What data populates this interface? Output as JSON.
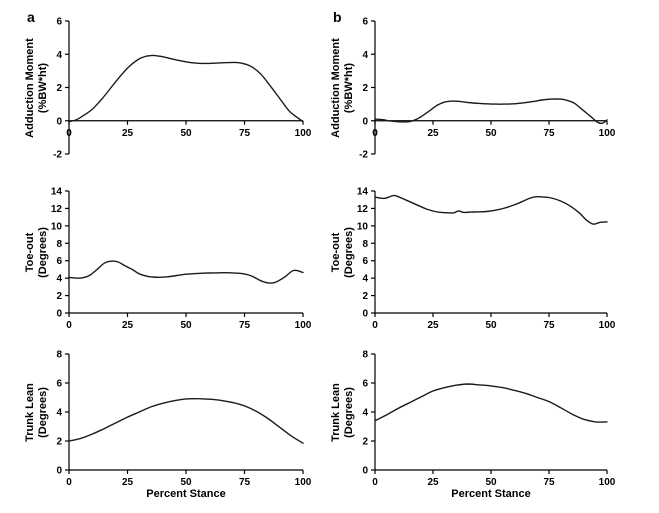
{
  "figure": {
    "background": "#ffffff",
    "line_color": "#1a1a1a",
    "axis_color": "#000000",
    "panel_labels": {
      "a": "a",
      "b": "b"
    },
    "x_axis_title": "Percent Stance"
  },
  "chart_data": [
    {
      "id": "a-adduction-moment",
      "type": "line",
      "panel_label": "a",
      "ylabel_line1": "Adduction Moment",
      "ylabel_line2": "(%BW*ht)",
      "xlabel": "",
      "xlim": [
        0,
        100
      ],
      "ylim": [
        -2,
        6
      ],
      "xticks": [
        0,
        25,
        50,
        75,
        100
      ],
      "yticks": [
        -2,
        0,
        2,
        4,
        6
      ],
      "x": [
        0,
        3,
        6,
        10,
        14,
        18,
        22,
        26,
        30,
        33,
        36,
        40,
        44,
        48,
        52,
        56,
        60,
        64,
        68,
        72,
        75,
        78,
        82,
        86,
        90,
        94,
        97,
        100
      ],
      "y": [
        -0.05,
        0.05,
        0.3,
        0.7,
        1.3,
        2.0,
        2.7,
        3.3,
        3.72,
        3.88,
        3.93,
        3.85,
        3.72,
        3.6,
        3.5,
        3.45,
        3.45,
        3.48,
        3.5,
        3.5,
        3.42,
        3.25,
        2.8,
        2.1,
        1.35,
        0.6,
        0.25,
        -0.05
      ]
    },
    {
      "id": "b-adduction-moment",
      "type": "line",
      "panel_label": "b",
      "ylabel_line1": "Adduction Moment",
      "ylabel_line2": "(%BW*ht)",
      "xlabel": "",
      "xlim": [
        0,
        100
      ],
      "ylim": [
        -2,
        6
      ],
      "xticks": [
        0,
        25,
        50,
        75,
        100
      ],
      "yticks": [
        -2,
        0,
        2,
        4,
        6
      ],
      "x": [
        0,
        3,
        6,
        9,
        12,
        15,
        18,
        21,
        24,
        27,
        30,
        33,
        36,
        40,
        44,
        48,
        52,
        56,
        60,
        64,
        68,
        72,
        76,
        80,
        83,
        86,
        90,
        93,
        96,
        98,
        100
      ],
      "y": [
        0.1,
        0.07,
        0.0,
        -0.05,
        -0.07,
        -0.05,
        0.1,
        0.35,
        0.65,
        0.95,
        1.12,
        1.18,
        1.17,
        1.1,
        1.05,
        1.02,
        1.0,
        1.0,
        1.02,
        1.08,
        1.15,
        1.25,
        1.3,
        1.3,
        1.22,
        1.05,
        0.6,
        0.25,
        -0.1,
        -0.15,
        0.05
      ]
    },
    {
      "id": "a-toe-out",
      "type": "line",
      "panel_label": "",
      "ylabel_line1": "Toe-out",
      "ylabel_line2": "(Degrees)",
      "xlabel": "",
      "xlim": [
        0,
        100
      ],
      "ylim": [
        0,
        14
      ],
      "xticks": [
        0,
        25,
        50,
        75,
        100
      ],
      "yticks": [
        0,
        2,
        4,
        6,
        8,
        10,
        12,
        14
      ],
      "x": [
        0,
        3,
        6,
        9,
        12,
        15,
        18,
        21,
        24,
        27,
        30,
        34,
        38,
        42,
        46,
        50,
        54,
        58,
        62,
        66,
        70,
        74,
        78,
        82,
        85,
        88,
        92,
        96,
        100
      ],
      "y": [
        4.1,
        4.0,
        4.05,
        4.35,
        5.0,
        5.7,
        5.95,
        5.85,
        5.4,
        5.0,
        4.5,
        4.18,
        4.1,
        4.15,
        4.3,
        4.45,
        4.52,
        4.58,
        4.6,
        4.62,
        4.6,
        4.52,
        4.25,
        3.7,
        3.45,
        3.5,
        4.1,
        4.88,
        4.65
      ]
    },
    {
      "id": "b-toe-out",
      "type": "line",
      "panel_label": "",
      "ylabel_line1": "Toe-out",
      "ylabel_line2": "(Degrees)",
      "xlabel": "",
      "xlim": [
        0,
        100
      ],
      "ylim": [
        0,
        14
      ],
      "xticks": [
        0,
        25,
        50,
        75,
        100
      ],
      "yticks": [
        0,
        2,
        4,
        6,
        8,
        10,
        12,
        14
      ],
      "x": [
        0,
        2,
        4,
        6,
        8,
        10,
        13,
        16,
        19,
        22,
        25,
        28,
        31,
        34,
        36,
        38,
        41,
        44,
        48,
        52,
        56,
        60,
        64,
        67,
        70,
        73,
        76,
        80,
        84,
        88,
        91,
        94,
        97,
        100
      ],
      "y": [
        13.3,
        13.2,
        13.15,
        13.3,
        13.5,
        13.35,
        13.0,
        12.65,
        12.3,
        11.95,
        11.7,
        11.55,
        11.5,
        11.5,
        11.72,
        11.55,
        11.58,
        11.6,
        11.65,
        11.8,
        12.05,
        12.4,
        12.85,
        13.2,
        13.35,
        13.3,
        13.2,
        12.85,
        12.3,
        11.5,
        10.7,
        10.2,
        10.4,
        10.45
      ]
    },
    {
      "id": "a-trunk-lean",
      "type": "line",
      "panel_label": "",
      "ylabel_line1": "Trunk Lean",
      "ylabel_line2": "(Degrees)",
      "xlabel": "Percent Stance",
      "xlim": [
        0,
        100
      ],
      "ylim": [
        0,
        8
      ],
      "xticks": [
        0,
        25,
        50,
        75,
        100
      ],
      "yticks": [
        0,
        2,
        4,
        6,
        8
      ],
      "x": [
        0,
        5,
        10,
        15,
        20,
        25,
        30,
        35,
        40,
        45,
        50,
        55,
        60,
        65,
        70,
        75,
        80,
        85,
        90,
        95,
        100
      ],
      "y": [
        2.0,
        2.18,
        2.48,
        2.85,
        3.25,
        3.65,
        4.0,
        4.35,
        4.6,
        4.78,
        4.9,
        4.92,
        4.88,
        4.8,
        4.65,
        4.42,
        4.05,
        3.55,
        2.95,
        2.35,
        1.85
      ]
    },
    {
      "id": "b-trunk-lean",
      "type": "line",
      "panel_label": "",
      "ylabel_line1": "Trunk Lean",
      "ylabel_line2": "(Degrees)",
      "xlabel": "Percent Stance",
      "xlim": [
        0,
        100
      ],
      "ylim": [
        0,
        8
      ],
      "xticks": [
        0,
        25,
        50,
        75,
        100
      ],
      "yticks": [
        0,
        2,
        4,
        6,
        8
      ],
      "x": [
        0,
        5,
        10,
        15,
        20,
        25,
        30,
        35,
        40,
        45,
        50,
        55,
        60,
        65,
        70,
        75,
        80,
        85,
        90,
        95,
        100
      ],
      "y": [
        3.4,
        3.8,
        4.25,
        4.65,
        5.05,
        5.45,
        5.68,
        5.85,
        5.93,
        5.87,
        5.8,
        5.68,
        5.5,
        5.28,
        5.0,
        4.72,
        4.3,
        3.85,
        3.5,
        3.32,
        3.32
      ]
    }
  ]
}
